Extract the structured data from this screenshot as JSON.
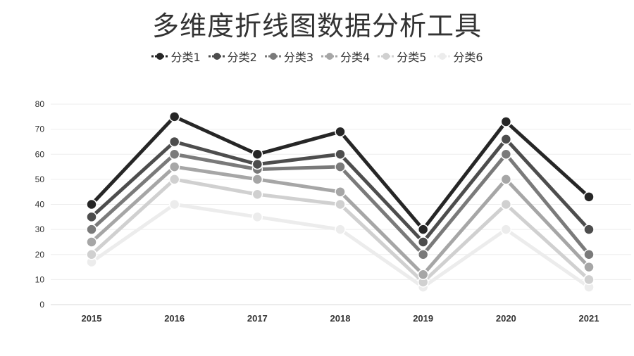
{
  "chart_data": {
    "type": "line",
    "title": "多维度折线图数据分析工具",
    "xlabel": "",
    "ylabel": "",
    "ylim": [
      0,
      80
    ],
    "yticks": [
      0,
      10,
      20,
      30,
      40,
      50,
      60,
      70,
      80
    ],
    "categories": [
      "2015",
      "2016",
      "2017",
      "2018",
      "2019",
      "2020",
      "2021"
    ],
    "grid": true,
    "legend_position": "top",
    "series": [
      {
        "name": "分类1",
        "color": "#262626",
        "values": [
          40,
          75,
          60,
          69,
          30,
          73,
          43
        ]
      },
      {
        "name": "分类2",
        "color": "#4d4d4d",
        "values": [
          35,
          65,
          56,
          60,
          25,
          66,
          30
        ]
      },
      {
        "name": "分类3",
        "color": "#7a7a7a",
        "values": [
          30,
          60,
          54,
          55,
          20,
          60,
          20
        ]
      },
      {
        "name": "分类4",
        "color": "#a6a6a6",
        "values": [
          25,
          55,
          50,
          45,
          12,
          50,
          15
        ]
      },
      {
        "name": "分类5",
        "color": "#d0d0d0",
        "values": [
          20,
          50,
          44,
          40,
          9,
          40,
          10
        ]
      },
      {
        "name": "分类6",
        "color": "#ececec",
        "values": [
          17,
          40,
          35,
          30,
          7,
          30,
          7
        ]
      }
    ]
  }
}
